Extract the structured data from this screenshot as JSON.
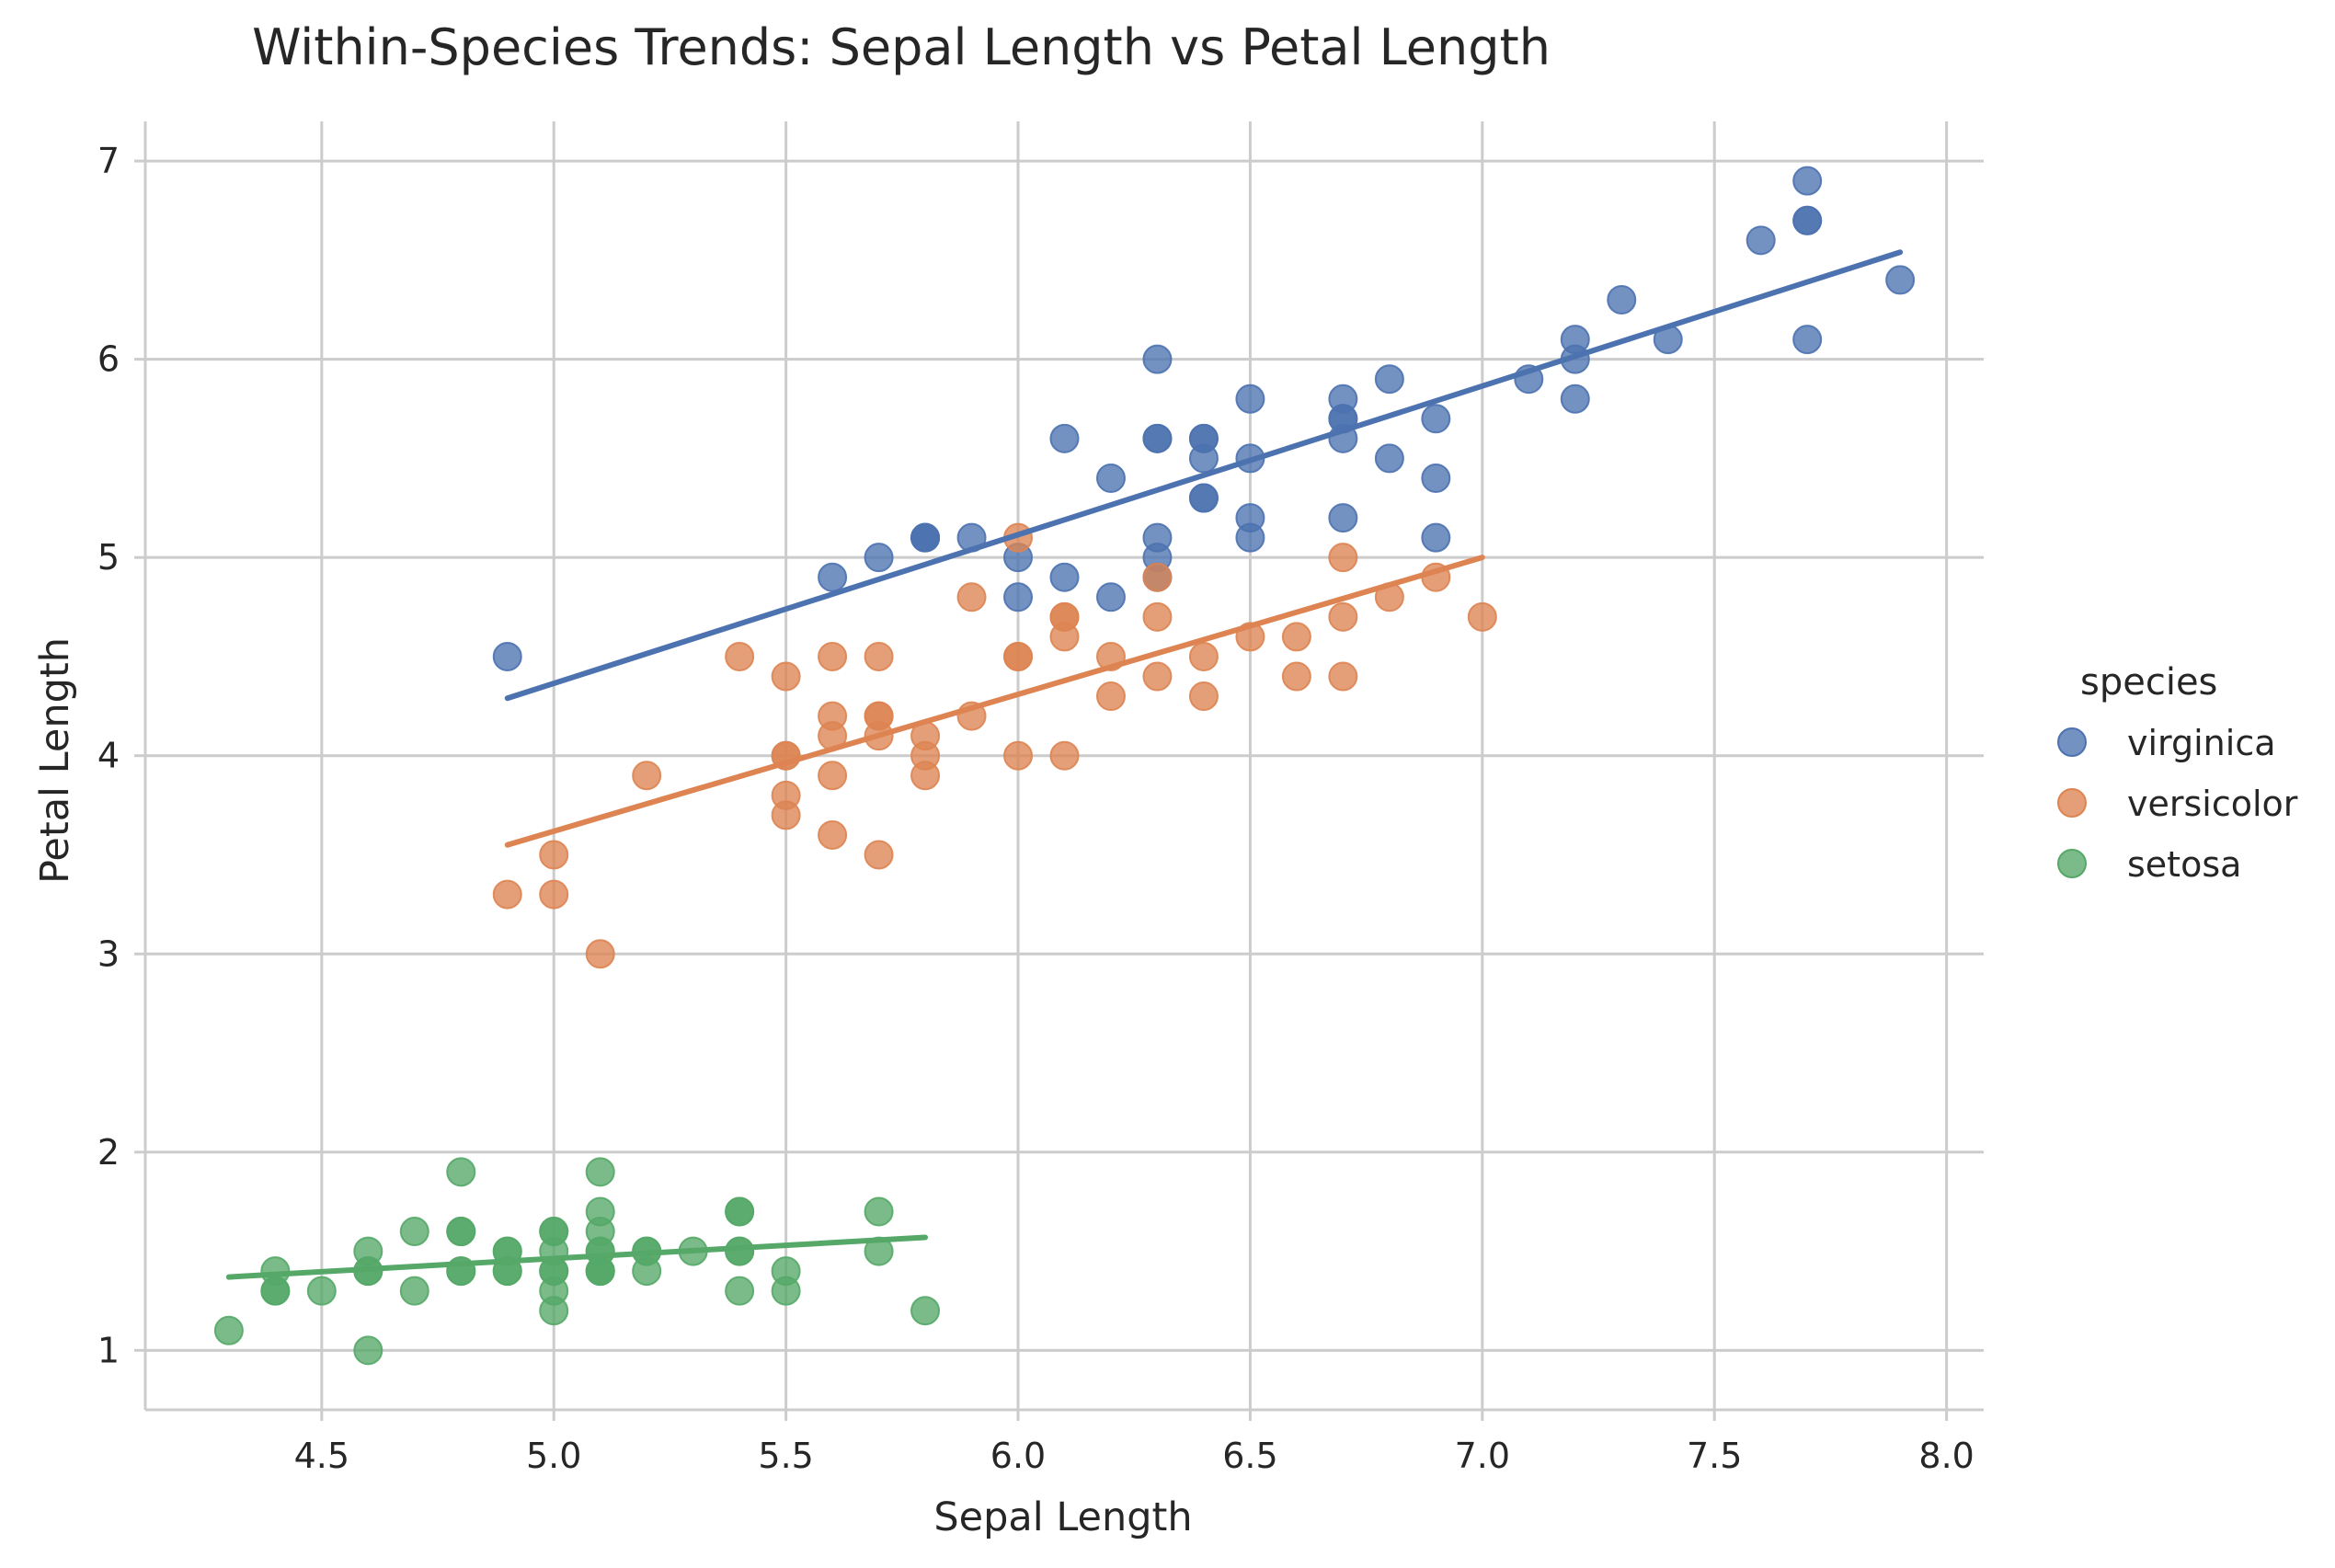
{
  "chart_data": {
    "type": "scatter",
    "title": "Within-Species Trends: Sepal Length vs Petal Length",
    "xlabel": "Sepal Length",
    "ylabel": "Petal Length",
    "xlim": [
      4.12,
      8.08
    ],
    "ylim": [
      0.7,
      7.2
    ],
    "xticks": [
      "4.5",
      "5.0",
      "5.5",
      "6.0",
      "6.5",
      "7.0",
      "7.5",
      "8.0"
    ],
    "yticks": [
      "1",
      "2",
      "3",
      "4",
      "5",
      "6",
      "7"
    ],
    "grid": true,
    "legend": {
      "title": "species",
      "placement": "right"
    },
    "series": [
      {
        "name": "virginica",
        "color": "#4c72b0",
        "fit_line": {
          "x": [
            4.9,
            7.9
          ],
          "y": [
            4.29,
            6.54
          ]
        },
        "points": [
          [
            4.9,
            4.5
          ],
          [
            5.6,
            4.9
          ],
          [
            5.7,
            5.0
          ],
          [
            5.8,
            5.1
          ],
          [
            5.8,
            5.1
          ],
          [
            5.8,
            5.1
          ],
          [
            5.9,
            5.1
          ],
          [
            6.0,
            5.0
          ],
          [
            6.0,
            4.8
          ],
          [
            6.1,
            5.6
          ],
          [
            6.1,
            4.9
          ],
          [
            6.2,
            5.4
          ],
          [
            6.2,
            4.8
          ],
          [
            6.3,
            6.0
          ],
          [
            6.3,
            5.6
          ],
          [
            6.3,
            5.6
          ],
          [
            6.3,
            5.1
          ],
          [
            6.3,
            5.0
          ],
          [
            6.3,
            4.9
          ],
          [
            6.4,
            5.6
          ],
          [
            6.4,
            5.6
          ],
          [
            6.4,
            5.5
          ],
          [
            6.4,
            5.3
          ],
          [
            6.4,
            5.3
          ],
          [
            6.5,
            5.8
          ],
          [
            6.5,
            5.5
          ],
          [
            6.5,
            5.2
          ],
          [
            6.5,
            5.1
          ],
          [
            6.7,
            5.8
          ],
          [
            6.7,
            5.7
          ],
          [
            6.7,
            5.7
          ],
          [
            6.7,
            5.6
          ],
          [
            6.7,
            5.2
          ],
          [
            6.8,
            5.9
          ],
          [
            6.8,
            5.5
          ],
          [
            6.9,
            5.7
          ],
          [
            6.9,
            5.4
          ],
          [
            6.9,
            5.1
          ],
          [
            7.1,
            5.9
          ],
          [
            7.2,
            6.1
          ],
          [
            7.2,
            6.0
          ],
          [
            7.2,
            5.8
          ],
          [
            7.3,
            6.3
          ],
          [
            7.4,
            6.1
          ],
          [
            7.6,
            6.6
          ],
          [
            7.7,
            6.9
          ],
          [
            7.7,
            6.7
          ],
          [
            7.7,
            6.7
          ],
          [
            7.7,
            6.1
          ],
          [
            7.9,
            6.4
          ]
        ]
      },
      {
        "name": "versicolor",
        "color": "#dd8452",
        "fit_line": {
          "x": [
            4.9,
            7.0
          ],
          "y": [
            3.55,
            5.0
          ]
        },
        "points": [
          [
            4.9,
            3.3
          ],
          [
            5.0,
            3.5
          ],
          [
            5.0,
            3.3
          ],
          [
            5.1,
            3.0
          ],
          [
            5.2,
            3.9
          ],
          [
            5.4,
            4.5
          ],
          [
            5.5,
            4.4
          ],
          [
            5.5,
            4.0
          ],
          [
            5.5,
            4.0
          ],
          [
            5.5,
            3.8
          ],
          [
            5.5,
            3.7
          ],
          [
            5.6,
            4.5
          ],
          [
            5.6,
            4.2
          ],
          [
            5.6,
            4.1
          ],
          [
            5.6,
            3.9
          ],
          [
            5.6,
            3.6
          ],
          [
            5.7,
            4.5
          ],
          [
            5.7,
            4.2
          ],
          [
            5.7,
            4.2
          ],
          [
            5.7,
            4.1
          ],
          [
            5.7,
            3.5
          ],
          [
            5.8,
            4.1
          ],
          [
            5.8,
            4.0
          ],
          [
            5.8,
            3.9
          ],
          [
            5.9,
            4.8
          ],
          [
            5.9,
            4.2
          ],
          [
            6.0,
            5.1
          ],
          [
            6.0,
            4.5
          ],
          [
            6.0,
            4.5
          ],
          [
            6.0,
            4.0
          ],
          [
            6.1,
            4.7
          ],
          [
            6.1,
            4.7
          ],
          [
            6.1,
            4.6
          ],
          [
            6.1,
            4.0
          ],
          [
            6.2,
            4.5
          ],
          [
            6.2,
            4.3
          ],
          [
            6.3,
            4.9
          ],
          [
            6.3,
            4.7
          ],
          [
            6.3,
            4.4
          ],
          [
            6.4,
            4.5
          ],
          [
            6.4,
            4.3
          ],
          [
            6.5,
            4.6
          ],
          [
            6.6,
            4.6
          ],
          [
            6.6,
            4.4
          ],
          [
            6.7,
            5.0
          ],
          [
            6.7,
            4.7
          ],
          [
            6.7,
            4.4
          ],
          [
            6.8,
            4.8
          ],
          [
            6.9,
            4.9
          ],
          [
            7.0,
            4.7
          ]
        ]
      },
      {
        "name": "setosa",
        "color": "#55a868",
        "fit_line": {
          "x": [
            4.3,
            5.8
          ],
          "y": [
            1.37,
            1.57
          ]
        },
        "points": [
          [
            4.3,
            1.1
          ],
          [
            4.4,
            1.4
          ],
          [
            4.4,
            1.3
          ],
          [
            4.4,
            1.3
          ],
          [
            4.5,
            1.3
          ],
          [
            4.6,
            1.5
          ],
          [
            4.6,
            1.4
          ],
          [
            4.6,
            1.4
          ],
          [
            4.6,
            1.0
          ],
          [
            4.7,
            1.6
          ],
          [
            4.7,
            1.3
          ],
          [
            4.8,
            1.9
          ],
          [
            4.8,
            1.6
          ],
          [
            4.8,
            1.6
          ],
          [
            4.8,
            1.4
          ],
          [
            4.8,
            1.4
          ],
          [
            4.9,
            1.5
          ],
          [
            4.9,
            1.5
          ],
          [
            4.9,
            1.4
          ],
          [
            4.9,
            1.4
          ],
          [
            5.0,
            1.6
          ],
          [
            5.0,
            1.6
          ],
          [
            5.0,
            1.5
          ],
          [
            5.0,
            1.4
          ],
          [
            5.0,
            1.4
          ],
          [
            5.0,
            1.3
          ],
          [
            5.0,
            1.2
          ],
          [
            5.1,
            1.9
          ],
          [
            5.1,
            1.7
          ],
          [
            5.1,
            1.6
          ],
          [
            5.1,
            1.5
          ],
          [
            5.1,
            1.5
          ],
          [
            5.1,
            1.4
          ],
          [
            5.1,
            1.4
          ],
          [
            5.1,
            1.4
          ],
          [
            5.2,
            1.5
          ],
          [
            5.2,
            1.5
          ],
          [
            5.2,
            1.4
          ],
          [
            5.3,
            1.5
          ],
          [
            5.4,
            1.7
          ],
          [
            5.4,
            1.7
          ],
          [
            5.4,
            1.5
          ],
          [
            5.4,
            1.5
          ],
          [
            5.4,
            1.3
          ],
          [
            5.5,
            1.4
          ],
          [
            5.5,
            1.3
          ],
          [
            5.7,
            1.7
          ],
          [
            5.7,
            1.5
          ],
          [
            5.8,
            1.2
          ]
        ]
      }
    ]
  }
}
